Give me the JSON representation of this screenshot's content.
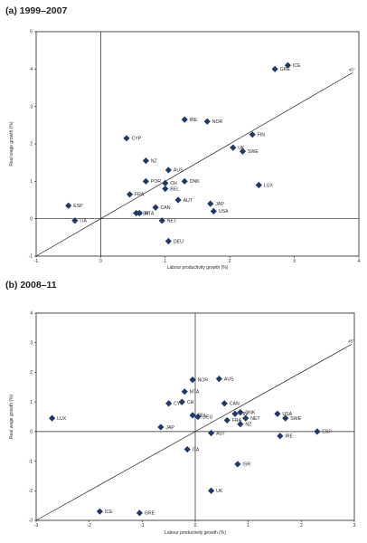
{
  "chart_data": [
    {
      "type": "scatter",
      "title": "(a) 1999–2007",
      "xlabel": "Labour productivity growth (%)",
      "ylabel": "Real wage growth (%)",
      "xlim": [
        -1,
        4
      ],
      "ylim": [
        -1,
        5
      ],
      "xticks": [
        "-1",
        "0",
        "1",
        "2",
        "3",
        "4"
      ],
      "yticks": [
        "-1",
        "0",
        "1",
        "2",
        "3",
        "4",
        "5"
      ],
      "reference_line": {
        "label": "45°",
        "from": [
          -1,
          -1
        ],
        "to": [
          3.9,
          3.9
        ]
      },
      "points": [
        {
          "label": "ICE",
          "x": 2.9,
          "y": 4.1
        },
        {
          "label": "GRE",
          "x": 2.7,
          "y": 4.0
        },
        {
          "label": "IRE",
          "x": 1.3,
          "y": 2.65
        },
        {
          "label": "NOR",
          "x": 1.65,
          "y": 2.6
        },
        {
          "label": "FIN",
          "x": 2.35,
          "y": 2.25
        },
        {
          "label": "CYP",
          "x": 0.4,
          "y": 2.15
        },
        {
          "label": "UK",
          "x": 2.05,
          "y": 1.9
        },
        {
          "label": "SWE",
          "x": 2.2,
          "y": 1.8
        },
        {
          "label": "NZ",
          "x": 0.7,
          "y": 1.55
        },
        {
          "label": "AUS",
          "x": 1.05,
          "y": 1.3
        },
        {
          "label": "POR",
          "x": 0.7,
          "y": 1.0
        },
        {
          "label": "CH",
          "x": 1.0,
          "y": 0.95
        },
        {
          "label": "DNK",
          "x": 1.3,
          "y": 1.0
        },
        {
          "label": "BEL",
          "x": 1.0,
          "y": 0.8
        },
        {
          "label": "LUX",
          "x": 2.45,
          "y": 0.9
        },
        {
          "label": "FRA",
          "x": 0.45,
          "y": 0.65
        },
        {
          "label": "AUT",
          "x": 1.2,
          "y": 0.5
        },
        {
          "label": "JAP",
          "x": 1.7,
          "y": 0.4
        },
        {
          "label": "CAN",
          "x": 0.85,
          "y": 0.3
        },
        {
          "label": "USA",
          "x": 1.75,
          "y": 0.2
        },
        {
          "label": "ISR",
          "x": 0.55,
          "y": 0.15
        },
        {
          "label": "MTA",
          "x": 0.6,
          "y": 0.15
        },
        {
          "label": "NET",
          "x": 0.95,
          "y": -0.05
        },
        {
          "label": "ESP",
          "x": -0.5,
          "y": 0.35
        },
        {
          "label": "ITA",
          "x": -0.4,
          "y": -0.05
        },
        {
          "label": "DEU",
          "x": 1.05,
          "y": -0.6
        }
      ]
    },
    {
      "type": "scatter",
      "title": "(b) 2008–11",
      "xlabel": "Labour productivity growth (%)",
      "ylabel": "Real wage growth (%)",
      "xlim": [
        -3,
        3
      ],
      "ylim": [
        -3,
        4
      ],
      "xticks": [
        "-3",
        "-2",
        "-1",
        "0",
        "1",
        "2",
        "3"
      ],
      "yticks": [
        "-3",
        "-2",
        "-1",
        "0",
        "1",
        "2",
        "3",
        "4"
      ],
      "reference_line": {
        "label": "45°",
        "from": [
          -3,
          -3
        ],
        "to": [
          2.95,
          2.95
        ]
      },
      "points": [
        {
          "label": "NOR",
          "x": -0.05,
          "y": 1.75
        },
        {
          "label": "AUS",
          "x": 0.45,
          "y": 1.78
        },
        {
          "label": "MTA",
          "x": -0.2,
          "y": 1.35
        },
        {
          "label": "CYP",
          "x": -0.5,
          "y": 0.95
        },
        {
          "label": "CH",
          "x": -0.25,
          "y": 1.0
        },
        {
          "label": "CAN",
          "x": 0.55,
          "y": 0.95
        },
        {
          "label": "BEL",
          "x": -0.05,
          "y": 0.55
        },
        {
          "label": "DEU",
          "x": 0.05,
          "y": 0.5
        },
        {
          "label": "FIN",
          "x": 0.75,
          "y": 0.6
        },
        {
          "label": "DNK",
          "x": 0.85,
          "y": 0.65
        },
        {
          "label": "FRA",
          "x": 0.6,
          "y": 0.38
        },
        {
          "label": "NET",
          "x": 0.95,
          "y": 0.45
        },
        {
          "label": "NZ",
          "x": 0.85,
          "y": 0.25
        },
        {
          "label": "USA",
          "x": 1.55,
          "y": 0.6
        },
        {
          "label": "SWE",
          "x": 1.7,
          "y": 0.45
        },
        {
          "label": "ESP",
          "x": 2.3,
          "y": 0.0
        },
        {
          "label": "IRE",
          "x": 1.6,
          "y": -0.15
        },
        {
          "label": "LUX",
          "x": -2.7,
          "y": 0.45
        },
        {
          "label": "JAP",
          "x": -0.65,
          "y": 0.15
        },
        {
          "label": "AUT",
          "x": 0.3,
          "y": -0.05
        },
        {
          "label": "ITA",
          "x": -0.15,
          "y": -0.6
        },
        {
          "label": "ISR",
          "x": 0.8,
          "y": -1.1
        },
        {
          "label": "UK",
          "x": 0.3,
          "y": -2.0
        },
        {
          "label": "ICE",
          "x": -1.8,
          "y": -2.7
        },
        {
          "label": "GRE",
          "x": -1.05,
          "y": -2.75
        }
      ]
    }
  ]
}
